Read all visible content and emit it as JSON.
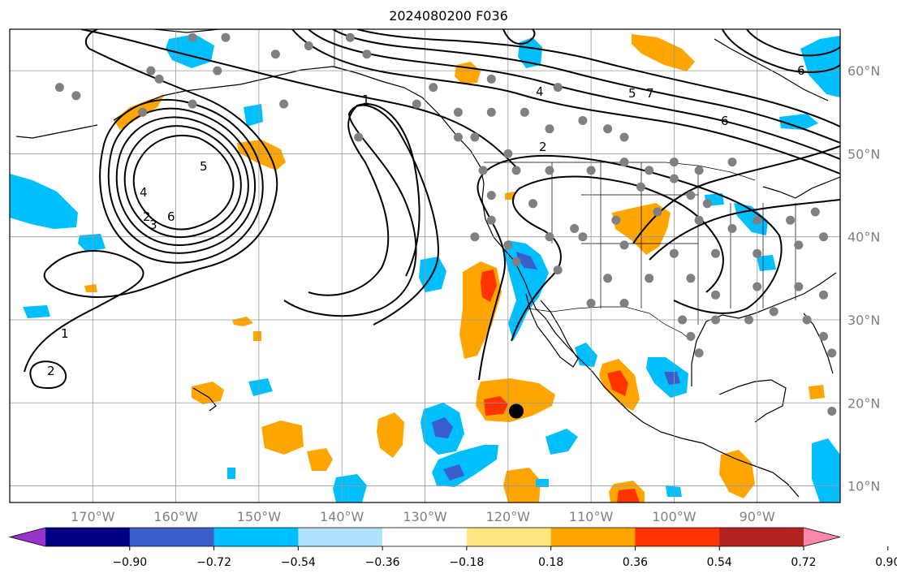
{
  "title": "2024080200 F036",
  "map": {
    "projection": "PlateCarree",
    "lon_range": [
      -180,
      -80
    ],
    "lat_range": [
      8,
      65
    ],
    "gridlines": true,
    "grid_color": "#999999",
    "coastline_color": "#000000",
    "lon_ticks": [
      "170°W",
      "160°W",
      "150°W",
      "140°W",
      "130°W",
      "120°W",
      "110°W",
      "100°W",
      "90°W"
    ],
    "lat_ticks": [
      "10°N",
      "20°N",
      "30°N",
      "40°N",
      "50°N",
      "60°N"
    ],
    "station_marker_color": "#808080",
    "center_marker": {
      "lon": -119,
      "lat": 19,
      "color": "#000000"
    }
  },
  "contours": {
    "color": "#000000",
    "labels": [
      "1",
      "1",
      "2",
      "2",
      "3",
      "4",
      "4",
      "5",
      "5",
      "6",
      "6",
      "6",
      "7",
      "2"
    ]
  },
  "colorbar": {
    "ticks": [
      "−0.90",
      "−0.72",
      "−0.54",
      "−0.36",
      "−0.18",
      "0.18",
      "0.36",
      "0.54",
      "0.72",
      "0.90"
    ],
    "colors": [
      "#9933cc",
      "#000080",
      "#3a5fcd",
      "#00bfff",
      "#b0e2ff",
      "#ffffff",
      "#ffe680",
      "#ffa500",
      "#ff3300",
      "#b22222",
      "#ff88aa"
    ],
    "extend": "both",
    "under_color": "#9933cc",
    "over_color": "#ff88aa"
  }
}
